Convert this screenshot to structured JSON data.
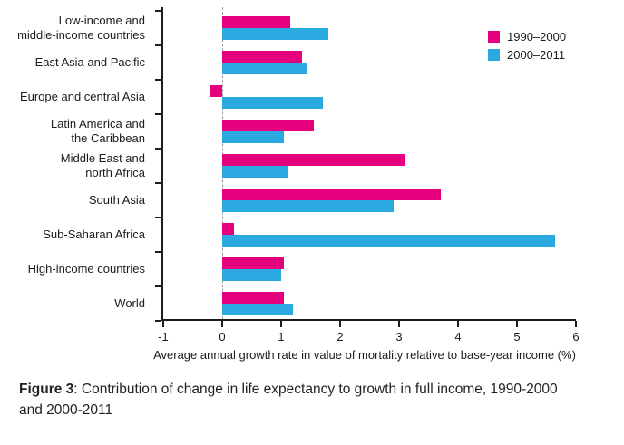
{
  "figure": {
    "caption_label": "Figure 3",
    "caption_text": ": Contribution of change in life expectancy to growth in full income, 1990-2000 and 2000-2011"
  },
  "chart_data": {
    "type": "bar",
    "orientation": "horizontal",
    "categories": [
      "Low-income and\nmiddle-income countries",
      "East Asia and Pacific",
      "Europe and central Asia",
      "Latin America and\nthe Caribbean",
      "Middle East and\nnorth Africa",
      "South Asia",
      "Sub-Saharan Africa",
      "High-income countries",
      "World"
    ],
    "series": [
      {
        "name": "1990–2000",
        "color": "#e5007d",
        "values": [
          1.15,
          1.35,
          -0.2,
          1.55,
          3.1,
          3.7,
          0.2,
          1.05,
          1.05
        ]
      },
      {
        "name": "2000–2011",
        "color": "#2baae1",
        "values": [
          1.8,
          1.45,
          1.7,
          1.05,
          1.1,
          2.9,
          5.65,
          1.0,
          1.2
        ]
      }
    ],
    "xlabel": "Average annual growth rate in value of mortality relative to base-year income (%)",
    "xlim": [
      -1,
      6
    ],
    "xticks": [
      -1,
      0,
      1,
      2,
      3,
      4,
      5,
      6
    ],
    "zero_line_x": 0,
    "legend_position": "top-right",
    "grid": "none"
  }
}
